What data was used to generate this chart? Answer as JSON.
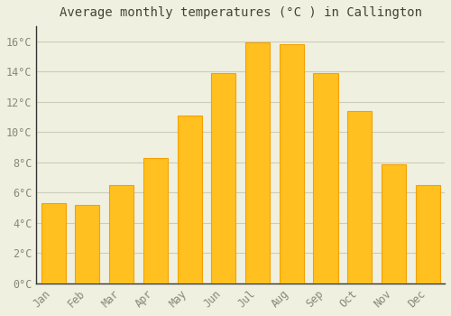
{
  "title": "Average monthly temperatures (°C ) in Callington",
  "months": [
    "Jan",
    "Feb",
    "Mar",
    "Apr",
    "May",
    "Jun",
    "Jul",
    "Aug",
    "Sep",
    "Oct",
    "Nov",
    "Dec"
  ],
  "values": [
    5.3,
    5.2,
    6.5,
    8.3,
    11.1,
    13.9,
    15.9,
    15.8,
    13.9,
    11.4,
    7.9,
    6.5
  ],
  "bar_color": "#FFC020",
  "bar_edge_color": "#F5A000",
  "background_color": "#F0F0E0",
  "grid_color": "#CCCCBB",
  "text_color": "#888877",
  "spine_color": "#333333",
  "ylim": [
    0,
    17
  ],
  "ytick_step": 2,
  "title_fontsize": 10,
  "tick_fontsize": 8.5
}
